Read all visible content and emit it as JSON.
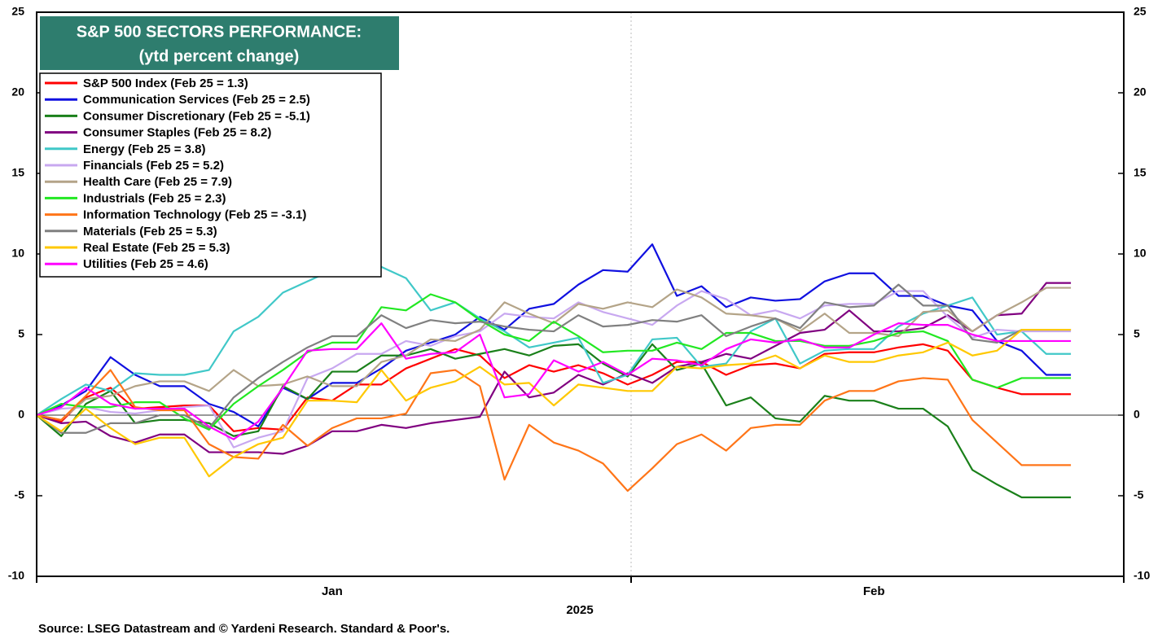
{
  "chart_data": {
    "type": "line",
    "title": "S&P 500 SECTORS PERFORMANCE:",
    "subtitle": "(ytd percent change)",
    "xlabel": "2025",
    "source": "Source: LSEG Datastream and © Yardeni Research. Standard & Poor's.",
    "categories": [
      null,
      null,
      null,
      null,
      null,
      null,
      null,
      null,
      null,
      null,
      null,
      null,
      "Jan",
      null,
      null,
      null,
      null,
      null,
      null,
      null,
      null,
      null,
      null,
      null,
      null,
      null,
      null,
      null,
      null,
      null,
      null,
      null,
      null,
      null,
      "Feb",
      null,
      null,
      null,
      null,
      null,
      null,
      null,
      null
    ],
    "ylim": [
      -10,
      25
    ],
    "yticks": [
      -10,
      -5,
      0,
      5,
      10,
      15,
      20,
      25
    ],
    "grid": false,
    "legend": "upper left",
    "series": [
      {
        "name": "S&P 500 Index (Feb 25 = 1.3)",
        "color": "#ff0000",
        "values": [
          0,
          -0.4,
          1.1,
          1.7,
          0.4,
          0.5,
          0.6,
          0.6,
          -1.0,
          -0.8,
          -0.9,
          1.1,
          0.9,
          1.9,
          1.9,
          2.9,
          3.5,
          4.1,
          3.7,
          2.3,
          3.1,
          2.7,
          3.1,
          2.6,
          1.9,
          2.5,
          3.3,
          3.3,
          2.5,
          3.1,
          3.2,
          2.9,
          3.8,
          3.9,
          3.9,
          4.2,
          4.4,
          4.0,
          2.2,
          1.7,
          1.3,
          1.3,
          1.3
        ]
      },
      {
        "name": "Communication Services (Feb 25 = 2.5)",
        "color": "#1010e0",
        "values": [
          0,
          0.6,
          1.5,
          3.6,
          2.5,
          1.8,
          1.8,
          0.7,
          0.2,
          -0.7,
          1.7,
          1.0,
          2.0,
          2.0,
          2.9,
          4.0,
          4.5,
          5.0,
          6.1,
          5.3,
          6.6,
          6.9,
          8.1,
          9.0,
          8.9,
          10.6,
          7.4,
          8.0,
          6.7,
          7.3,
          7.1,
          7.2,
          8.3,
          8.8,
          8.8,
          7.4,
          7.4,
          6.8,
          6.5,
          4.6,
          4.0,
          2.5,
          2.5
        ]
      },
      {
        "name": "Consumer Discretionary (Feb 25 = -5.1)",
        "color": "#1a801a",
        "values": [
          0,
          -1.3,
          0.7,
          1.5,
          -0.5,
          -0.3,
          -0.3,
          -0.5,
          -1.3,
          -1.0,
          1.8,
          1.0,
          2.7,
          2.7,
          3.7,
          3.7,
          4.1,
          3.5,
          3.8,
          4.1,
          3.7,
          4.3,
          4.4,
          3.2,
          2.4,
          4.4,
          2.8,
          3.2,
          0.6,
          1.1,
          -0.2,
          -0.4,
          1.2,
          0.9,
          0.9,
          0.4,
          0.4,
          -0.7,
          -3.4,
          -4.3,
          -5.1,
          -5.1,
          -5.1
        ]
      },
      {
        "name": "Consumer Staples (Feb 25 = 8.2)",
        "color": "#800080",
        "values": [
          0,
          -0.5,
          -0.4,
          -1.3,
          -1.7,
          -1.2,
          -1.2,
          -2.3,
          -2.3,
          -2.3,
          -2.4,
          -1.9,
          -1.0,
          -1.0,
          -0.6,
          -0.8,
          -0.5,
          -0.3,
          -0.1,
          2.7,
          1.1,
          1.4,
          2.5,
          1.9,
          2.6,
          2.0,
          3.0,
          3.3,
          3.8,
          3.5,
          4.3,
          5.1,
          5.3,
          6.5,
          5.2,
          5.2,
          5.4,
          6.2,
          5.2,
          6.2,
          6.3,
          8.2,
          8.2
        ]
      },
      {
        "name": "Energy (Feb 25 = 3.8)",
        "color": "#40c8c8",
        "values": [
          0,
          1.0,
          1.9,
          1.5,
          2.6,
          2.5,
          2.5,
          2.8,
          5.2,
          6.1,
          7.6,
          8.3,
          9.0,
          9.5,
          9.2,
          8.5,
          6.5,
          7.0,
          6.0,
          5.2,
          4.2,
          4.5,
          4.8,
          2.0,
          2.5,
          4.7,
          4.8,
          3.0,
          3.2,
          5.2,
          6.0,
          3.2,
          4.0,
          4.1,
          4.1,
          5.5,
          6.3,
          6.8,
          7.3,
          5.0,
          5.2,
          3.8,
          3.8
        ]
      },
      {
        "name": "Financials (Feb 25 = 5.2)",
        "color": "#c8a8f0",
        "values": [
          0,
          0.4,
          0.5,
          0.2,
          0.1,
          0.3,
          0.5,
          0.6,
          -2.0,
          -1.4,
          -1.0,
          2.3,
          2.9,
          3.8,
          3.8,
          4.6,
          4.3,
          4.9,
          5.2,
          6.3,
          6.1,
          6.0,
          7.0,
          6.4,
          6.0,
          5.6,
          6.8,
          7.7,
          7.2,
          6.2,
          6.5,
          6.0,
          6.8,
          6.9,
          6.9,
          7.7,
          7.7,
          6.1,
          4.8,
          5.3,
          5.2,
          5.2,
          5.2
        ]
      },
      {
        "name": "Health Care (Feb 25 = 7.9)",
        "color": "#b4a488",
        "values": [
          0,
          -0.3,
          1.0,
          1.2,
          1.8,
          2.1,
          2.1,
          1.5,
          2.8,
          1.8,
          1.9,
          2.4,
          1.8,
          1.8,
          3.3,
          3.7,
          4.7,
          4.6,
          5.3,
          7.0,
          6.3,
          5.7,
          6.9,
          6.6,
          7.0,
          6.7,
          7.8,
          7.3,
          6.3,
          6.2,
          6.0,
          5.2,
          6.3,
          5.1,
          5.1,
          4.9,
          6.4,
          6.5,
          5.2,
          6.2,
          7.0,
          7.9,
          7.9
        ]
      },
      {
        "name": "Industrials (Feb 25 = 2.3)",
        "color": "#22e822",
        "values": [
          0,
          0.7,
          0.5,
          0.5,
          0.8,
          0.8,
          -0.2,
          -0.9,
          0.7,
          1.8,
          2.8,
          3.9,
          4.5,
          4.5,
          6.7,
          6.5,
          7.5,
          7.0,
          5.9,
          5.0,
          4.6,
          5.8,
          4.9,
          3.9,
          4.0,
          4.0,
          4.5,
          4.1,
          5.1,
          5.1,
          4.6,
          4.6,
          4.3,
          4.3,
          4.6,
          5.1,
          5.2,
          4.6,
          2.2,
          1.7,
          2.3,
          2.3,
          2.3
        ]
      },
      {
        "name": "Information Technology (Feb 25 = -3.1)",
        "color": "#ff7518",
        "values": [
          0,
          -0.3,
          1.2,
          2.8,
          0.5,
          0.3,
          0.3,
          -1.8,
          -2.6,
          -2.7,
          -0.6,
          -1.9,
          -0.8,
          -0.2,
          -0.2,
          0.1,
          2.6,
          2.8,
          1.8,
          -4.0,
          -0.6,
          -1.7,
          -2.2,
          -3.0,
          -4.7,
          -3.3,
          -1.8,
          -1.2,
          -2.2,
          -0.8,
          -0.6,
          -0.6,
          0.9,
          1.5,
          1.5,
          2.1,
          2.3,
          2.2,
          -0.3,
          -1.7,
          -3.1,
          -3.1,
          -3.1
        ]
      },
      {
        "name": "Materials (Feb 25 = 5.3)",
        "color": "#808080",
        "values": [
          0,
          -1.1,
          -1.1,
          -0.5,
          -0.5,
          0,
          0,
          -0.8,
          1.1,
          2.3,
          3.3,
          4.2,
          4.9,
          4.9,
          6.2,
          5.4,
          5.9,
          5.7,
          5.8,
          5.5,
          5.3,
          5.2,
          6.2,
          5.5,
          5.6,
          5.9,
          5.8,
          6.2,
          4.9,
          5.5,
          6.0,
          5.4,
          7.0,
          6.7,
          6.8,
          8.1,
          6.8,
          6.8,
          4.7,
          4.5,
          5.3,
          5.3,
          5.3
        ]
      },
      {
        "name": "Real Estate (Feb 25 = 5.3)",
        "color": "#ffc800",
        "values": [
          0,
          -1.0,
          0.4,
          -0.8,
          -1.8,
          -1.4,
          -1.4,
          -3.8,
          -2.6,
          -1.8,
          -1.4,
          0.9,
          0.9,
          0.8,
          2.8,
          0.9,
          1.7,
          2.1,
          3.0,
          1.9,
          2.0,
          0.6,
          1.9,
          1.7,
          1.5,
          1.5,
          3.0,
          2.9,
          3.1,
          3.2,
          3.7,
          2.9,
          3.7,
          3.3,
          3.3,
          3.7,
          3.9,
          4.5,
          3.7,
          4.0,
          5.3,
          5.3,
          5.3
        ]
      },
      {
        "name": "Utilities (Feb 25 = 4.6)",
        "color": "#ff00ff",
        "values": [
          0,
          0.5,
          1.7,
          0.7,
          0.4,
          0.4,
          0.4,
          -0.7,
          -1.5,
          -0.4,
          1.7,
          4.0,
          4.1,
          4.1,
          5.7,
          3.5,
          3.8,
          3.9,
          5.0,
          1.1,
          1.3,
          3.4,
          2.7,
          3.3,
          2.5,
          3.5,
          3.4,
          3.1,
          4.1,
          4.7,
          4.5,
          4.7,
          4.2,
          4.2,
          5.0,
          5.7,
          5.6,
          5.6,
          5.0,
          4.6,
          4.6,
          4.6,
          4.6
        ]
      }
    ]
  }
}
